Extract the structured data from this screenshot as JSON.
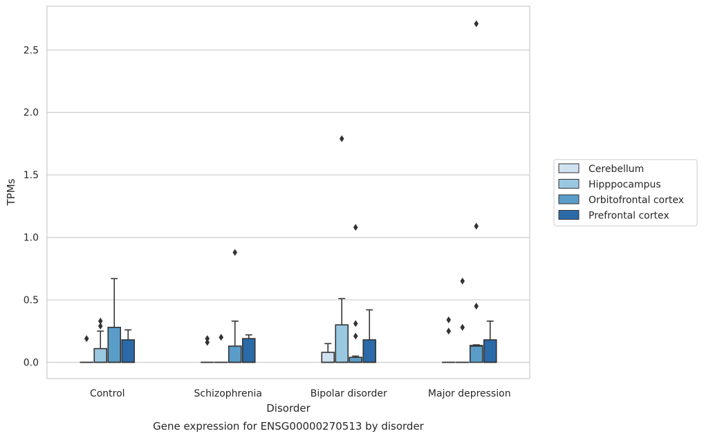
{
  "chart_data": {
    "type": "box",
    "caption": "Gene expression for ENSG00000270513 by disorder",
    "xlabel": "Disorder",
    "ylabel": "TPMs",
    "ylim": [
      -0.13,
      2.85
    ],
    "yticks": [
      "0.0",
      "0.5",
      "1.0",
      "1.5",
      "2.0",
      "2.5"
    ],
    "ytick_values": [
      0.0,
      0.5,
      1.0,
      1.5,
      2.0,
      2.5
    ],
    "grid": "horizontal",
    "legend_position": "right",
    "categories": [
      "Control",
      "Schizophrenia",
      "Bipolar disorder",
      "Major depression"
    ],
    "series": [
      {
        "name": "Cerebellum",
        "color": "#d0e1f2",
        "boxes": [
          {
            "q1": 0,
            "median": 0,
            "q3": 0,
            "whisker_low": 0,
            "whisker_high": 0,
            "outliers": [
              0.19
            ]
          },
          {
            "q1": 0,
            "median": 0,
            "q3": 0,
            "whisker_low": 0,
            "whisker_high": 0,
            "outliers": [
              0.16,
              0.19
            ]
          },
          {
            "q1": 0,
            "median": 0,
            "q3": 0.08,
            "whisker_low": 0,
            "whisker_high": 0.15,
            "outliers": []
          },
          {
            "q1": 0,
            "median": 0,
            "q3": 0,
            "whisker_low": 0,
            "whisker_high": 0,
            "outliers": [
              0.25,
              0.34
            ]
          }
        ]
      },
      {
        "name": "Hipppocampus",
        "color": "#9ac8e0",
        "boxes": [
          {
            "q1": 0,
            "median": 0,
            "q3": 0.11,
            "whisker_low": 0,
            "whisker_high": 0.25,
            "outliers": [
              0.29,
              0.33
            ]
          },
          {
            "q1": 0,
            "median": 0,
            "q3": 0,
            "whisker_low": 0,
            "whisker_high": 0,
            "outliers": [
              0.2
            ]
          },
          {
            "q1": 0,
            "median": 0,
            "q3": 0.3,
            "whisker_low": 0,
            "whisker_high": 0.51,
            "outliers": [
              1.79
            ]
          },
          {
            "q1": 0,
            "median": 0,
            "q3": 0,
            "whisker_low": 0,
            "whisker_high": 0,
            "outliers": [
              0.28,
              0.65
            ]
          }
        ]
      },
      {
        "name": "Orbitofrontal cortex",
        "color": "#5a9dc8",
        "boxes": [
          {
            "q1": 0,
            "median": 0,
            "q3": 0.28,
            "whisker_low": 0,
            "whisker_high": 0.67,
            "outliers": []
          },
          {
            "q1": 0,
            "median": 0,
            "q3": 0.13,
            "whisker_low": 0,
            "whisker_high": 0.33,
            "outliers": [
              0.88
            ]
          },
          {
            "q1": 0,
            "median": 0,
            "q3": 0.04,
            "whisker_low": 0,
            "whisker_high": 0.05,
            "outliers": [
              0.21,
              0.31,
              1.08
            ]
          },
          {
            "q1": 0,
            "median": 0.13,
            "q3": 0.135,
            "whisker_low": 0,
            "whisker_high": 0.14,
            "outliers": [
              0.45,
              1.09,
              2.71
            ]
          }
        ]
      },
      {
        "name": "Prefrontal cortex",
        "color": "#2b6aa8",
        "boxes": [
          {
            "q1": 0,
            "median": 0,
            "q3": 0.18,
            "whisker_low": 0,
            "whisker_high": 0.26,
            "outliers": []
          },
          {
            "q1": 0,
            "median": 0,
            "q3": 0.19,
            "whisker_low": 0,
            "whisker_high": 0.22,
            "outliers": []
          },
          {
            "q1": 0,
            "median": 0,
            "q3": 0.18,
            "whisker_low": 0,
            "whisker_high": 0.42,
            "outliers": []
          },
          {
            "q1": 0,
            "median": 0,
            "q3": 0.18,
            "whisker_low": 0,
            "whisker_high": 0.33,
            "outliers": []
          }
        ]
      }
    ]
  }
}
